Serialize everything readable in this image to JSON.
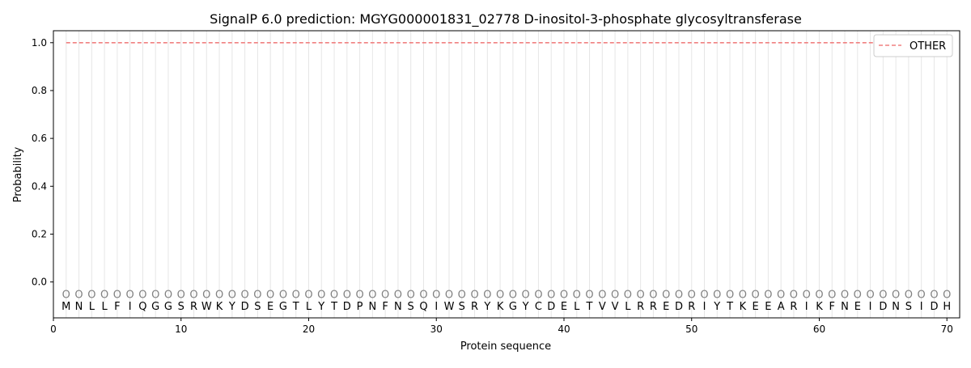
{
  "chart_data": {
    "type": "line",
    "title": "SignalP 6.0 prediction: MGYG000001831_02778 D-inositol-3-phosphate glycosyltransferase",
    "xlabel": "Protein sequence",
    "ylabel": "Probability",
    "xlim": [
      0,
      71
    ],
    "ylim": [
      -0.15,
      1.05
    ],
    "xticks": [
      0,
      10,
      20,
      30,
      40,
      50,
      60,
      70
    ],
    "yticks": [
      0.0,
      0.2,
      0.4,
      0.6,
      0.8,
      1.0
    ],
    "ytick_labels": [
      "0.0",
      "0.2",
      "0.4",
      "0.6",
      "0.8",
      "1.0"
    ],
    "grid": "vertical lines at each residue",
    "legend_position": "top-right",
    "sequence": [
      "M",
      "N",
      "L",
      "L",
      "F",
      "I",
      "Q",
      "G",
      "G",
      "S",
      "R",
      "W",
      "K",
      "Y",
      "D",
      "S",
      "E",
      "G",
      "T",
      "L",
      "Y",
      "T",
      "D",
      "P",
      "N",
      "F",
      "N",
      "S",
      "Q",
      "I",
      "W",
      "S",
      "R",
      "Y",
      "K",
      "G",
      "Y",
      "C",
      "D",
      "E",
      "L",
      "T",
      "V",
      "V",
      "L",
      "R",
      "R",
      "E",
      "D",
      "R",
      "I",
      "Y",
      "T",
      "K",
      "E",
      "E",
      "A",
      "R",
      "I",
      "K",
      "F",
      "N",
      "E",
      "I",
      "D",
      "N",
      "S",
      "I",
      "D",
      "H"
    ],
    "predicted_label": "O",
    "series": [
      {
        "name": "OTHER",
        "color": "#f08080",
        "style": "dashed",
        "x_start": 1,
        "x_end": 70,
        "value": 1.0
      }
    ]
  }
}
